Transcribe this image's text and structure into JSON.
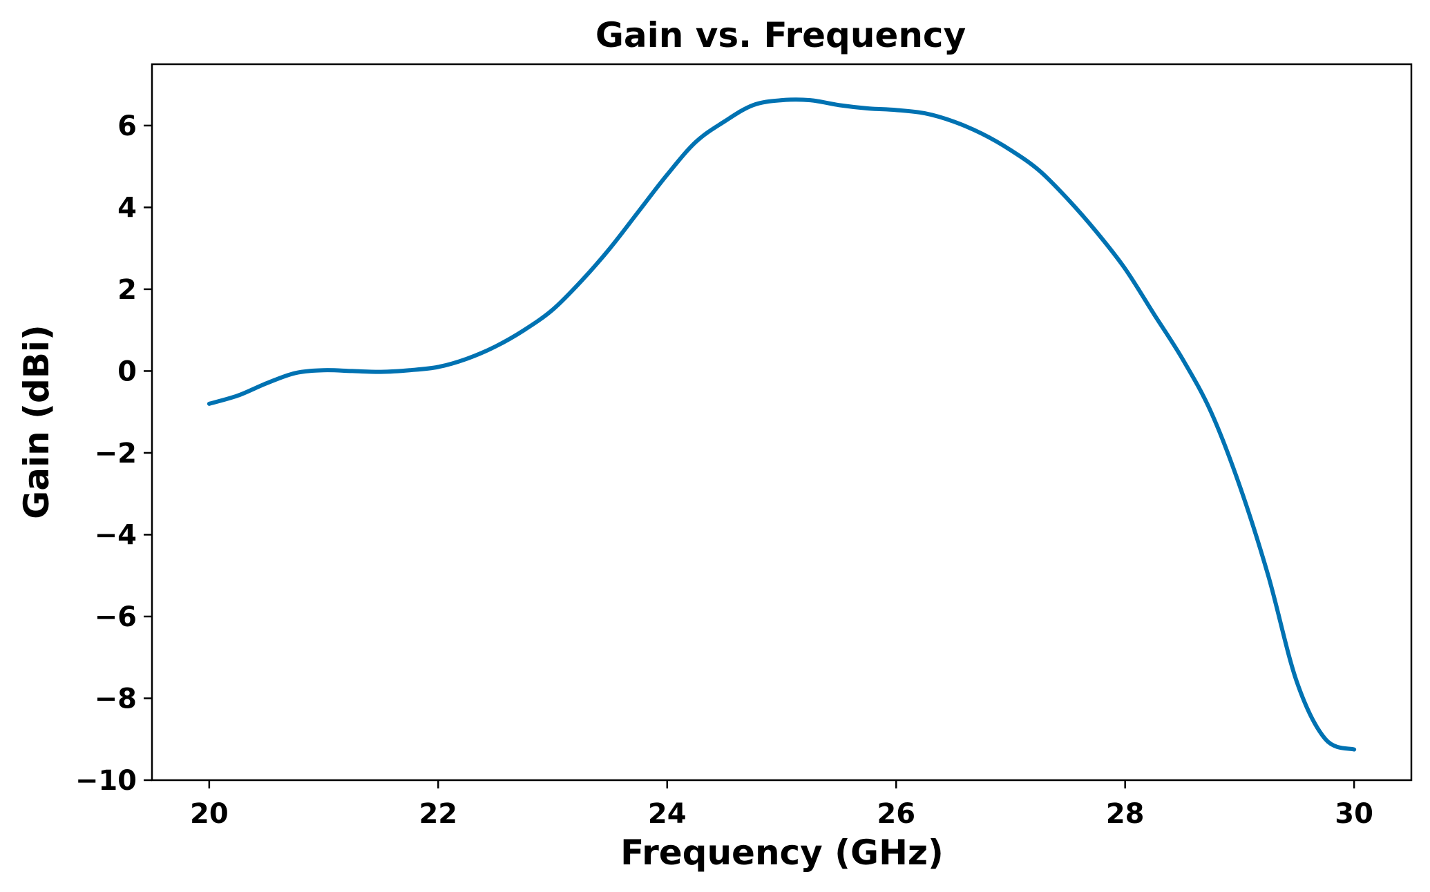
{
  "chart_data": {
    "type": "line",
    "title": "Gain vs. Frequency",
    "xlabel": "Frequency (GHz)",
    "ylabel": "Gain (dBi)",
    "xlim": [
      19.5,
      30.5
    ],
    "ylim": [
      -10,
      7.5
    ],
    "xticks": [
      20,
      22,
      24,
      26,
      28,
      30
    ],
    "yticks": [
      -10,
      -8,
      -6,
      -4,
      -2,
      0,
      2,
      4,
      6
    ],
    "grid": false,
    "series": [
      {
        "color": "#0072B2",
        "x": [
          20.0,
          20.25,
          20.5,
          20.75,
          21.0,
          21.25,
          21.5,
          21.75,
          22.0,
          22.25,
          22.5,
          22.75,
          23.0,
          23.25,
          23.5,
          23.75,
          24.0,
          24.25,
          24.5,
          24.75,
          25.0,
          25.25,
          25.5,
          25.75,
          26.0,
          26.25,
          26.5,
          26.75,
          27.0,
          27.25,
          27.5,
          27.75,
          28.0,
          28.25,
          28.5,
          28.75,
          29.0,
          29.25,
          29.5,
          29.75,
          30.0
        ],
        "y": [
          -0.8,
          -0.6,
          -0.3,
          -0.05,
          0.02,
          0.0,
          -0.02,
          0.02,
          0.1,
          0.3,
          0.6,
          1.0,
          1.5,
          2.2,
          3.0,
          3.9,
          4.8,
          5.6,
          6.1,
          6.5,
          6.62,
          6.62,
          6.5,
          6.42,
          6.38,
          6.3,
          6.1,
          5.8,
          5.4,
          4.9,
          4.2,
          3.4,
          2.5,
          1.4,
          0.3,
          -1.0,
          -2.8,
          -5.0,
          -7.6,
          -9.0,
          -9.25
        ]
      }
    ]
  }
}
